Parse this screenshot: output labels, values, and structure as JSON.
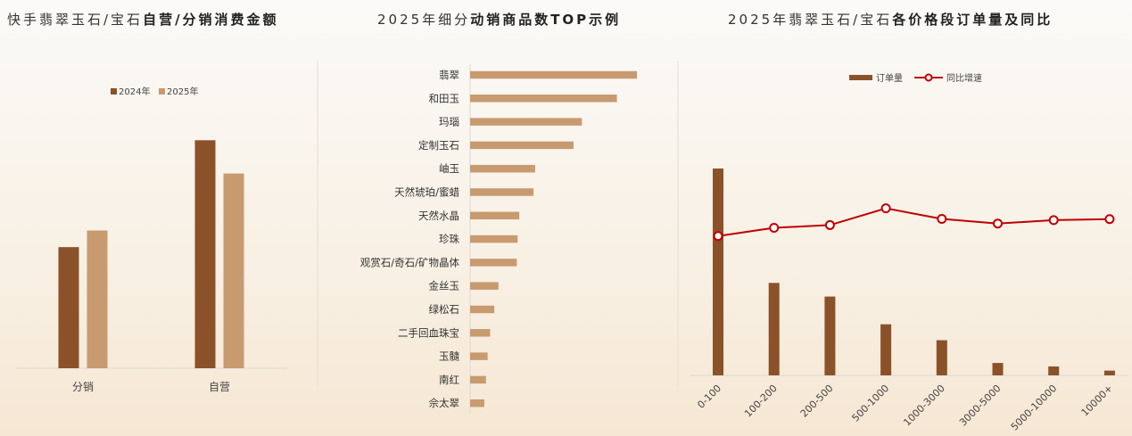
{
  "titles": [
    {
      "plain": "快手翡翠玉石/宝石",
      "bold": "自营/分销消费金额"
    },
    {
      "plain": "2025年细分",
      "bold": "动销商品数TOP示例"
    },
    {
      "plain": "2025年翡翠玉石/宝石",
      "bold": "各价格段订单量及同比"
    }
  ],
  "colors": {
    "dark": "#8b5229",
    "light": "#c89a70",
    "line": "#c00000"
  },
  "chart_data": [
    {
      "type": "bar",
      "categories": [
        "分销",
        "自营"
      ],
      "series": [
        {
          "name": "2024年",
          "values": [
            51,
            96
          ]
        },
        {
          "name": "2025年",
          "values": [
            58,
            82
          ]
        }
      ],
      "legend": "top-center",
      "ylim": [
        0,
        110
      ],
      "axis_labels": false
    },
    {
      "type": "bar",
      "orientation": "horizontal",
      "categories": [
        "翡翠",
        "和田玉",
        "玛瑙",
        "定制玉石",
        "岫玉",
        "天然琥珀/蜜蜡",
        "天然水晶",
        "珍珠",
        "观赏石/奇石/矿物晶体",
        "金丝玉",
        "绿松石",
        "二手回血珠宝",
        "玉髓",
        "南红",
        "佘太翠"
      ],
      "values": [
        100,
        88,
        67,
        62,
        39,
        38,
        29.5,
        28.5,
        28,
        17,
        14.5,
        12,
        10.5,
        9.5,
        8.5
      ],
      "xlim": [
        0,
        100
      ],
      "axis_labels": false
    },
    {
      "type": "bar",
      "categories": [
        "0-100",
        "100-200",
        "200-500",
        "500-1000",
        "1000-3000",
        "3000-5000",
        "5000-10000",
        "10000+"
      ],
      "series": [
        {
          "name": "订单量",
          "type": "bar",
          "values": [
            100,
            44.7,
            38.1,
            24.7,
            17.0,
            6.0,
            4.3,
            2.3
          ]
        },
        {
          "name": "同比增速",
          "type": "line",
          "values": [
            21.4,
            26.2,
            27.8,
            37.6,
            31.4,
            28.7,
            30.7,
            31.3
          ]
        }
      ],
      "legend": "top-center",
      "ylim_bar": [
        0,
        100
      ],
      "ylim_line": [
        -60,
        40
      ],
      "axis_labels": false
    }
  ]
}
